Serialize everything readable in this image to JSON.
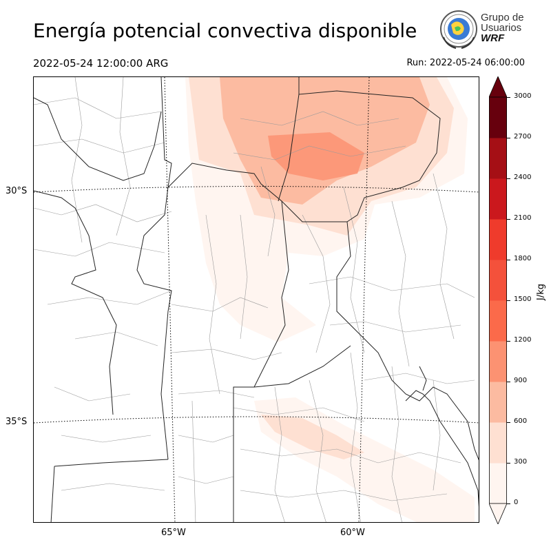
{
  "title": "Energía potencial convectiva disponible",
  "valid_time": "2022-05-24 12:00:00 ARG",
  "run_time": "Run: 2022-05-24 06:00:00",
  "logo": {
    "line1": "Grupo de",
    "line2": "Usuarios",
    "line3": "WRF"
  },
  "map": {
    "lat_labels": [
      "30°S",
      "35°S"
    ],
    "lon_labels": [
      "65°W",
      "60°W"
    ]
  },
  "colorbar": {
    "label": "J/kg",
    "ticks": [
      "0",
      "300",
      "600",
      "900",
      "1200",
      "1500",
      "1800",
      "2100",
      "2400",
      "2700",
      "3000"
    ],
    "colors": [
      "#fff5f0",
      "#fee0d2",
      "#fcbba1",
      "#fc9272",
      "#fb6a4a",
      "#f4513b",
      "#ef3b2c",
      "#cb181d",
      "#a50f15",
      "#67000d"
    ],
    "extend": "both"
  }
}
